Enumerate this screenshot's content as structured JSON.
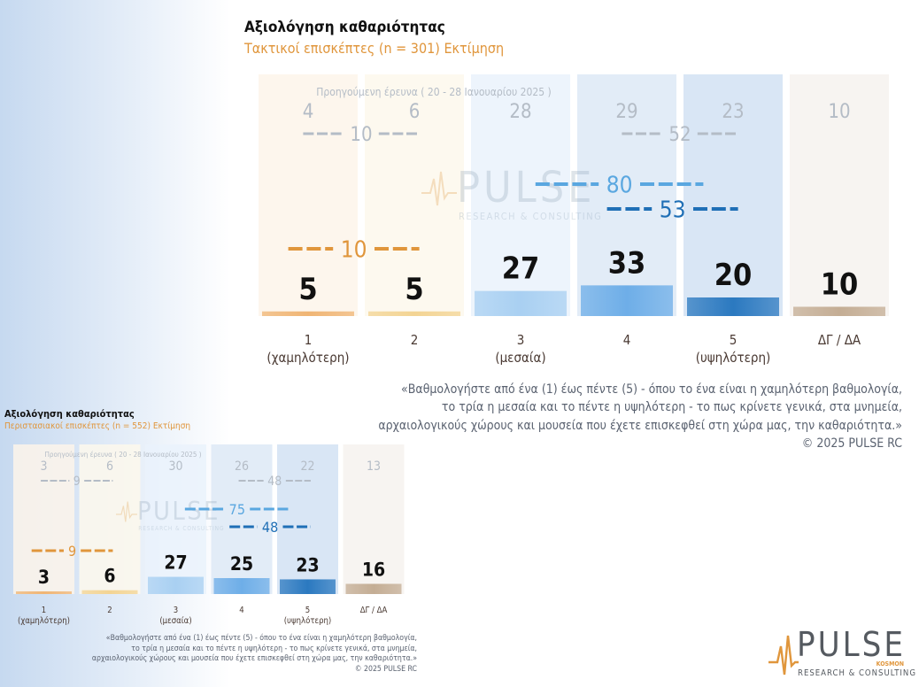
{
  "top": {
    "title": "Αξιολόγηση καθαριότητας",
    "subtitle": "Τακτικοί επισκέπτες  (n = 301)   Εκτίμηση",
    "chart_data": {
      "type": "bar",
      "categories": [
        "1 (χαμηλότερη)",
        "2",
        "3 (μεσαία)",
        "4",
        "5 (υψηλότερη)",
        "ΔΓ / ΔΑ"
      ],
      "category_lines": [
        [
          "1",
          "(χαμηλότερη)"
        ],
        [
          "2"
        ],
        [
          "3",
          "(μεσαία)"
        ],
        [
          "4"
        ],
        [
          "5",
          "(υψηλότερη)"
        ],
        [
          "ΔΓ / ΔΑ"
        ]
      ],
      "values": [
        5,
        5,
        27,
        33,
        20,
        10
      ],
      "previous_label": "Προηγούμενη έρευνα ( 20 - 28 Ιανουαρίου 2025 )",
      "previous_values": [
        4,
        6,
        28,
        29,
        23,
        10
      ],
      "previous_low_sum": 10,
      "previous_high_sum": 52,
      "low_sum": 10,
      "high_sum_45": 53,
      "high_sum_345": 80
    },
    "question_lines": [
      "«Βαθμολογήστε από ένα (1) έως πέντε (5) - όπου το ένα είναι η χαμηλότερη βαθμολογία,",
      "το τρία η μεσαία και το πέντε η υψηλότερη - το πως κρίνετε γενικά, στα μνημεία,",
      "αρχαιολογικούς χώρους και μουσεία που έχετε επισκεφθεί στη χώρα μας, την καθαριότητα.»",
      "©  2025  PULSE RC"
    ]
  },
  "bottom": {
    "title": "Αξιολόγηση καθαριότητας",
    "subtitle": "Περιστασιακοί επισκέπτες  (n = 552)   Εκτίμηση",
    "chart_data": {
      "type": "bar",
      "categories": [
        "1 (χαμηλότερη)",
        "2",
        "3 (μεσαία)",
        "4",
        "5 (υψηλότερη)",
        "ΔΓ / ΔΑ"
      ],
      "category_lines": [
        [
          "1",
          "(χαμηλότερη)"
        ],
        [
          "2"
        ],
        [
          "3",
          "(μεσαία)"
        ],
        [
          "4"
        ],
        [
          "5",
          "(υψηλότερη)"
        ],
        [
          "ΔΓ / ΔΑ"
        ]
      ],
      "values": [
        3,
        6,
        27,
        25,
        23,
        16
      ],
      "previous_label": "Προηγούμενη έρευνα ( 20 - 28 Ιανουαρίου 2025 )",
      "previous_values": [
        3,
        6,
        30,
        26,
        22,
        13
      ],
      "previous_low_sum": 9,
      "previous_high_sum": 48,
      "low_sum": 9,
      "high_sum_45": 48,
      "high_sum_345": 75
    },
    "question_lines": [
      "«Βαθμολογήστε από ένα (1) έως πέντε (5) - όπου το ένα είναι η χαμηλότερη βαθμολογία,",
      "το τρία η μεσαία και το πέντε η υψηλότερη - το πως κρίνετε γενικά, στα μνημεία,",
      "αρχαιολογικούς χώρους και μουσεία που έχετε επισκεφθεί στη χώρα μας, την καθαριότητα.»",
      "©  2025  PULSE RC"
    ]
  },
  "watermark": {
    "word": "PULSE",
    "tagline": "RESEARCH & CONSULTING"
  },
  "logo": {
    "word": "PULSE",
    "small": "KOSMON",
    "tagline": "RESEARCH & CONSULTING"
  },
  "colors": {
    "orange": "#e0963c",
    "bar_1": "#f0b574",
    "bar_2": "#f3d493",
    "bar_3": "#a9d0f2",
    "bar_4": "#6eaee8",
    "bar_5": "#2b79c0",
    "bar_dk": "#c4ad94",
    "light_blue": "#5aa7e0",
    "dark_blue": "#1f6fb6",
    "grey": "#b4bcc6"
  }
}
